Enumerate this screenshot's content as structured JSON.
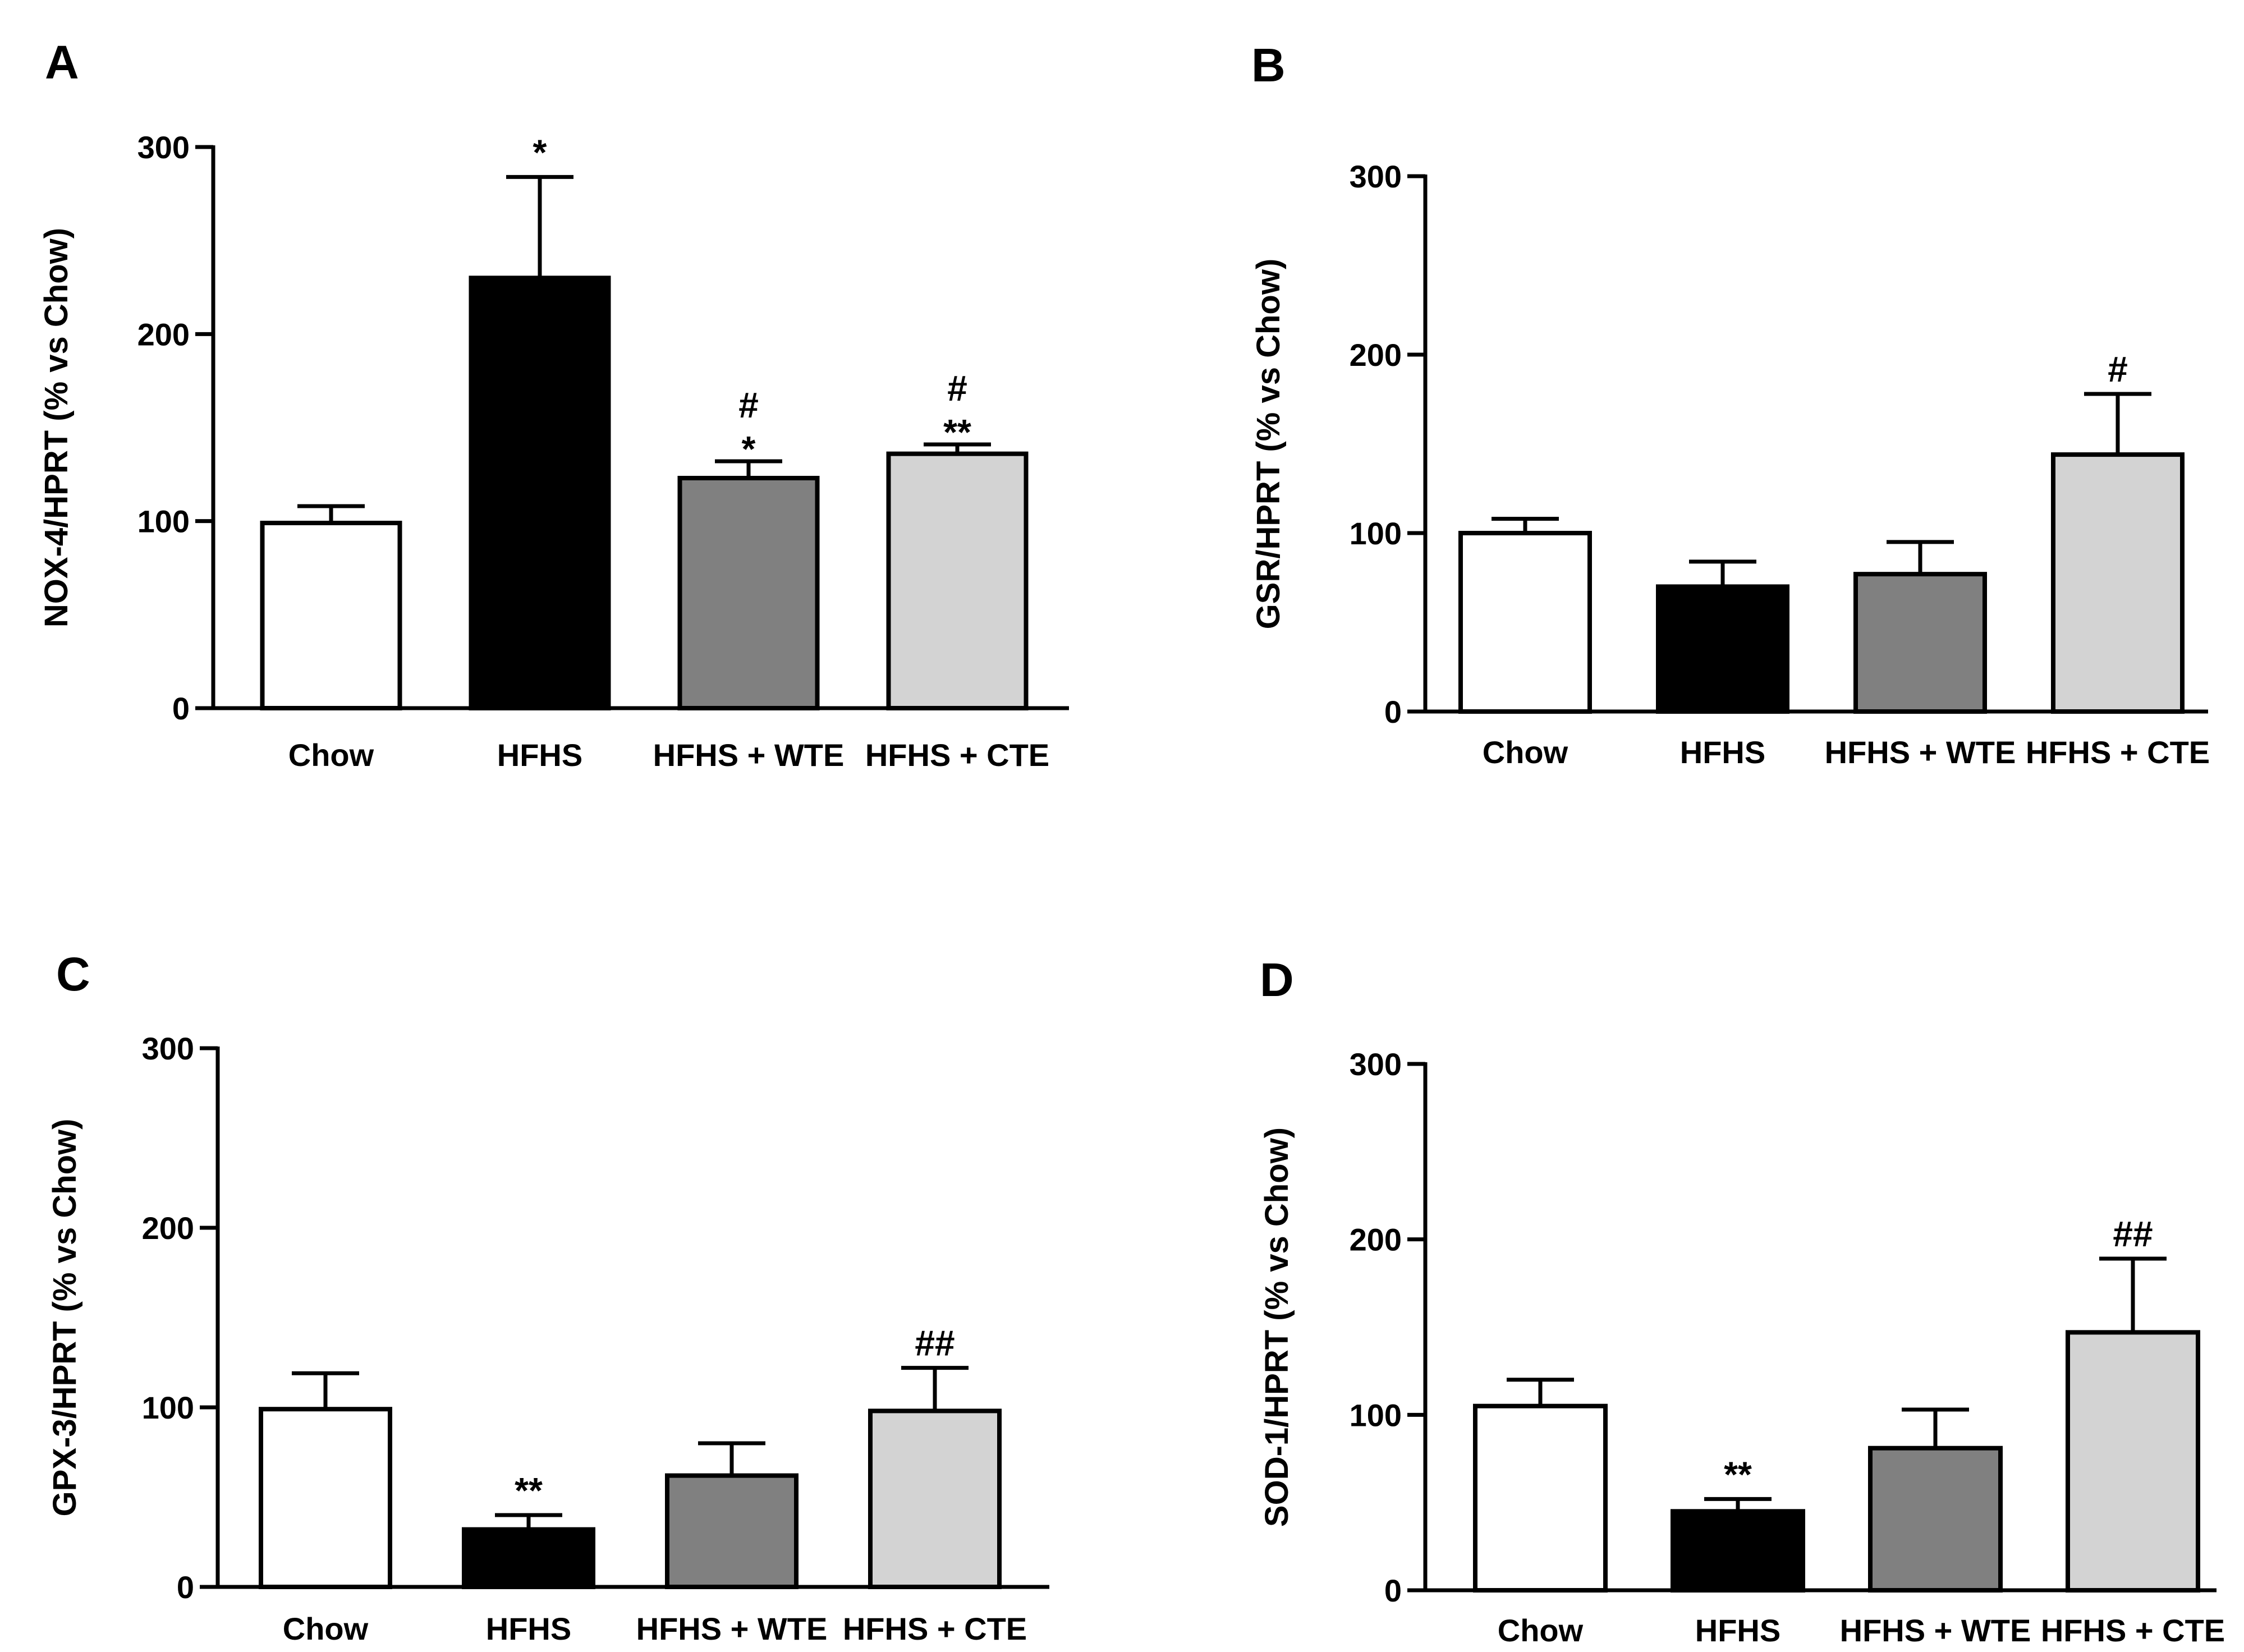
{
  "figure": {
    "colors": {
      "Chow": "#ffffff",
      "HFHS": "#000000",
      "HFHS + WTE": "#808080",
      "HFHS + CTE": "#d3d3d3",
      "axis": "#000000"
    }
  },
  "chart_data": [
    {
      "panel": "A",
      "type": "bar",
      "ylabel": "NOX-4/HPRT (% vs Chow)",
      "ylim": [
        0,
        300
      ],
      "yticks": [
        "0",
        "100",
        "200",
        "300"
      ],
      "categories": [
        "Chow",
        "HFHS",
        "HFHS + WTE",
        "HFHS + CTE"
      ],
      "values": [
        99,
        230,
        123,
        136
      ],
      "errors": [
        9,
        54,
        9,
        5
      ],
      "annotations": [
        [
          "",
          ""
        ],
        [
          "*",
          ""
        ],
        [
          "#",
          "*"
        ],
        [
          "#",
          "**"
        ]
      ]
    },
    {
      "panel": "B",
      "type": "bar",
      "ylabel": "GSR/HPRT (% vs Chow)",
      "ylim": [
        0,
        300
      ],
      "yticks": [
        "0",
        "100",
        "200",
        "300"
      ],
      "categories": [
        "Chow",
        "HFHS",
        "HFHS + WTE",
        "HFHS + CTE"
      ],
      "values": [
        100,
        70,
        77,
        144
      ],
      "errors": [
        8,
        14,
        18,
        34
      ],
      "annotations": [
        [
          "",
          ""
        ],
        [
          "",
          ""
        ],
        [
          "",
          ""
        ],
        [
          "#",
          ""
        ]
      ]
    },
    {
      "panel": "C",
      "type": "bar",
      "ylabel": "GPX-3/HPRT (% vs Chow)",
      "ylim": [
        0,
        300
      ],
      "yticks": [
        "0",
        "100",
        "200",
        "300"
      ],
      "categories": [
        "Chow",
        "HFHS",
        "HFHS + WTE",
        "HFHS + CTE"
      ],
      "values": [
        99,
        32,
        62,
        98
      ],
      "errors": [
        20,
        8,
        18,
        24
      ],
      "annotations": [
        [
          "",
          ""
        ],
        [
          "**",
          ""
        ],
        [
          "",
          ""
        ],
        [
          "##",
          ""
        ]
      ]
    },
    {
      "panel": "D",
      "type": "bar",
      "ylabel": "SOD-1/HPRT (% vs Chow)",
      "ylim": [
        0,
        300
      ],
      "yticks": [
        "0",
        "100",
        "200",
        "300"
      ],
      "categories": [
        "Chow",
        "HFHS",
        "HFHS + WTE",
        "HFHS + CTE"
      ],
      "values": [
        105,
        45,
        81,
        147
      ],
      "errors": [
        15,
        7,
        22,
        42
      ],
      "annotations": [
        [
          "",
          ""
        ],
        [
          "**",
          ""
        ],
        [
          "",
          ""
        ],
        [
          "##",
          ""
        ]
      ]
    }
  ]
}
